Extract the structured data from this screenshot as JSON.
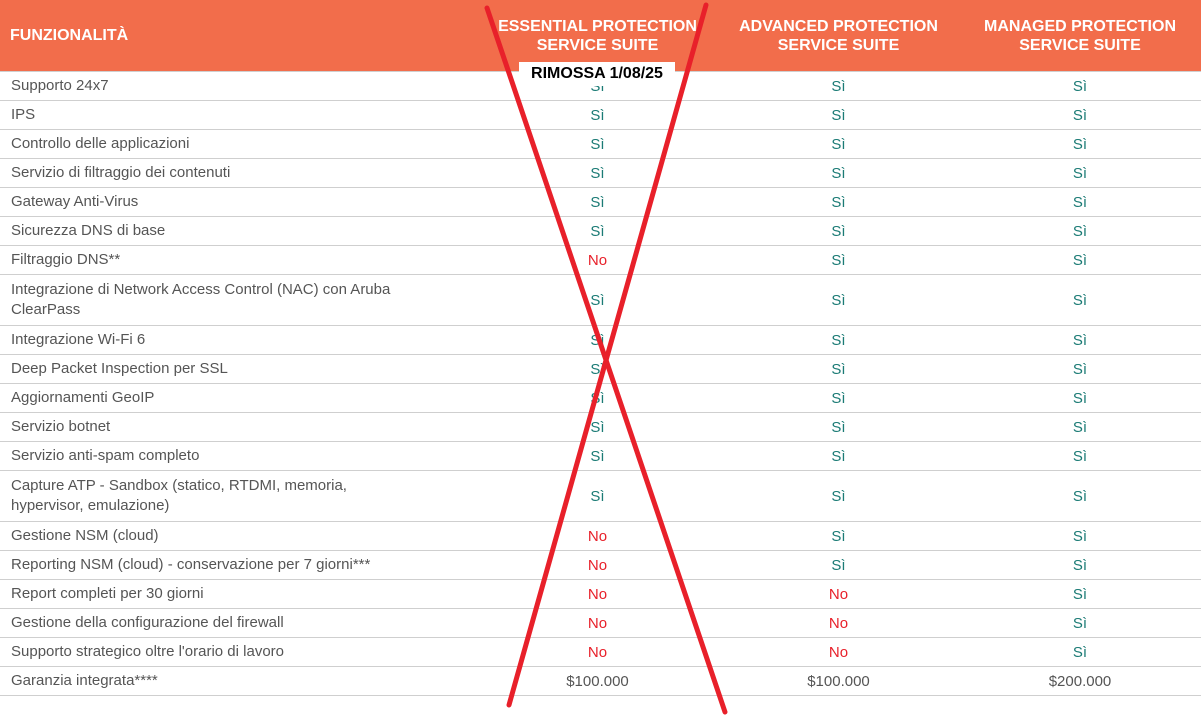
{
  "header": {
    "col_feature": "FUNZIONALITÀ",
    "col_essential": [
      "ESSENTIAL PROTECTION",
      "SERVICE SUITE"
    ],
    "col_advanced": [
      "ADVANCED PROTECTION",
      "SERVICE SUITE"
    ],
    "col_managed": [
      "MANAGED PROTECTION",
      "SERVICE SUITE"
    ]
  },
  "annotation": "RIMOSSA 1/08/25",
  "rows": [
    {
      "feature": "Supporto 24x7",
      "essential": "Sì",
      "advanced": "Sì",
      "managed": "Sì"
    },
    {
      "feature": "IPS",
      "essential": "Sì",
      "advanced": "Sì",
      "managed": "Sì"
    },
    {
      "feature": "Controllo delle applicazioni",
      "essential": "Sì",
      "advanced": "Sì",
      "managed": "Sì"
    },
    {
      "feature": "Servizio di filtraggio dei contenuti",
      "essential": "Sì",
      "advanced": "Sì",
      "managed": "Sì"
    },
    {
      "feature": "Gateway Anti-Virus",
      "essential": "Sì",
      "advanced": "Sì",
      "managed": "Sì"
    },
    {
      "feature": "Sicurezza DNS di base",
      "essential": "Sì",
      "advanced": "Sì",
      "managed": "Sì"
    },
    {
      "feature": "Filtraggio DNS**",
      "essential": "No",
      "advanced": "Sì",
      "managed": "Sì"
    },
    {
      "feature": [
        "Integrazione di Network Access Control (NAC) con Aruba",
        "ClearPass"
      ],
      "essential": "Sì",
      "advanced": "Sì",
      "managed": "Sì"
    },
    {
      "feature": "Integrazione Wi-Fi 6",
      "essential": "Sì",
      "advanced": "Sì",
      "managed": "Sì"
    },
    {
      "feature": "Deep Packet Inspection per SSL",
      "essential": "Sì",
      "advanced": "Sì",
      "managed": "Sì"
    },
    {
      "feature": "Aggiornamenti GeoIP",
      "essential": "Sì",
      "advanced": "Sì",
      "managed": "Sì"
    },
    {
      "feature": "Servizio botnet",
      "essential": "Sì",
      "advanced": "Sì",
      "managed": "Sì"
    },
    {
      "feature": "Servizio anti-spam completo",
      "essential": "Sì",
      "advanced": "Sì",
      "managed": "Sì"
    },
    {
      "feature": [
        "Capture ATP - Sandbox (statico, RTDMI, memoria,",
        "hypervisor, emulazione)"
      ],
      "essential": "Sì",
      "advanced": "Sì",
      "managed": "Sì"
    },
    {
      "feature": "Gestione NSM (cloud)",
      "essential": "No",
      "advanced": "Sì",
      "managed": "Sì"
    },
    {
      "feature": "Reporting NSM (cloud) - conservazione per 7 giorni***",
      "essential": "No",
      "advanced": "Sì",
      "managed": "Sì"
    },
    {
      "feature": "Report completi per 30 giorni",
      "essential": "No",
      "advanced": "No",
      "managed": "Sì"
    },
    {
      "feature": "Gestione della configurazione del firewall",
      "essential": "No",
      "advanced": "No",
      "managed": "Sì"
    },
    {
      "feature": "Supporto strategico oltre l'orario di lavoro",
      "essential": "No",
      "advanced": "No",
      "managed": "Sì"
    },
    {
      "feature": "Garanzia integrata****",
      "essential": "$100.000",
      "advanced": "$100.000",
      "managed": "$200.000"
    }
  ],
  "colors": {
    "header_bg": "#f26d4b",
    "yes": "#1b7b75",
    "no": "#e8202a",
    "cross": "#e8202a"
  }
}
